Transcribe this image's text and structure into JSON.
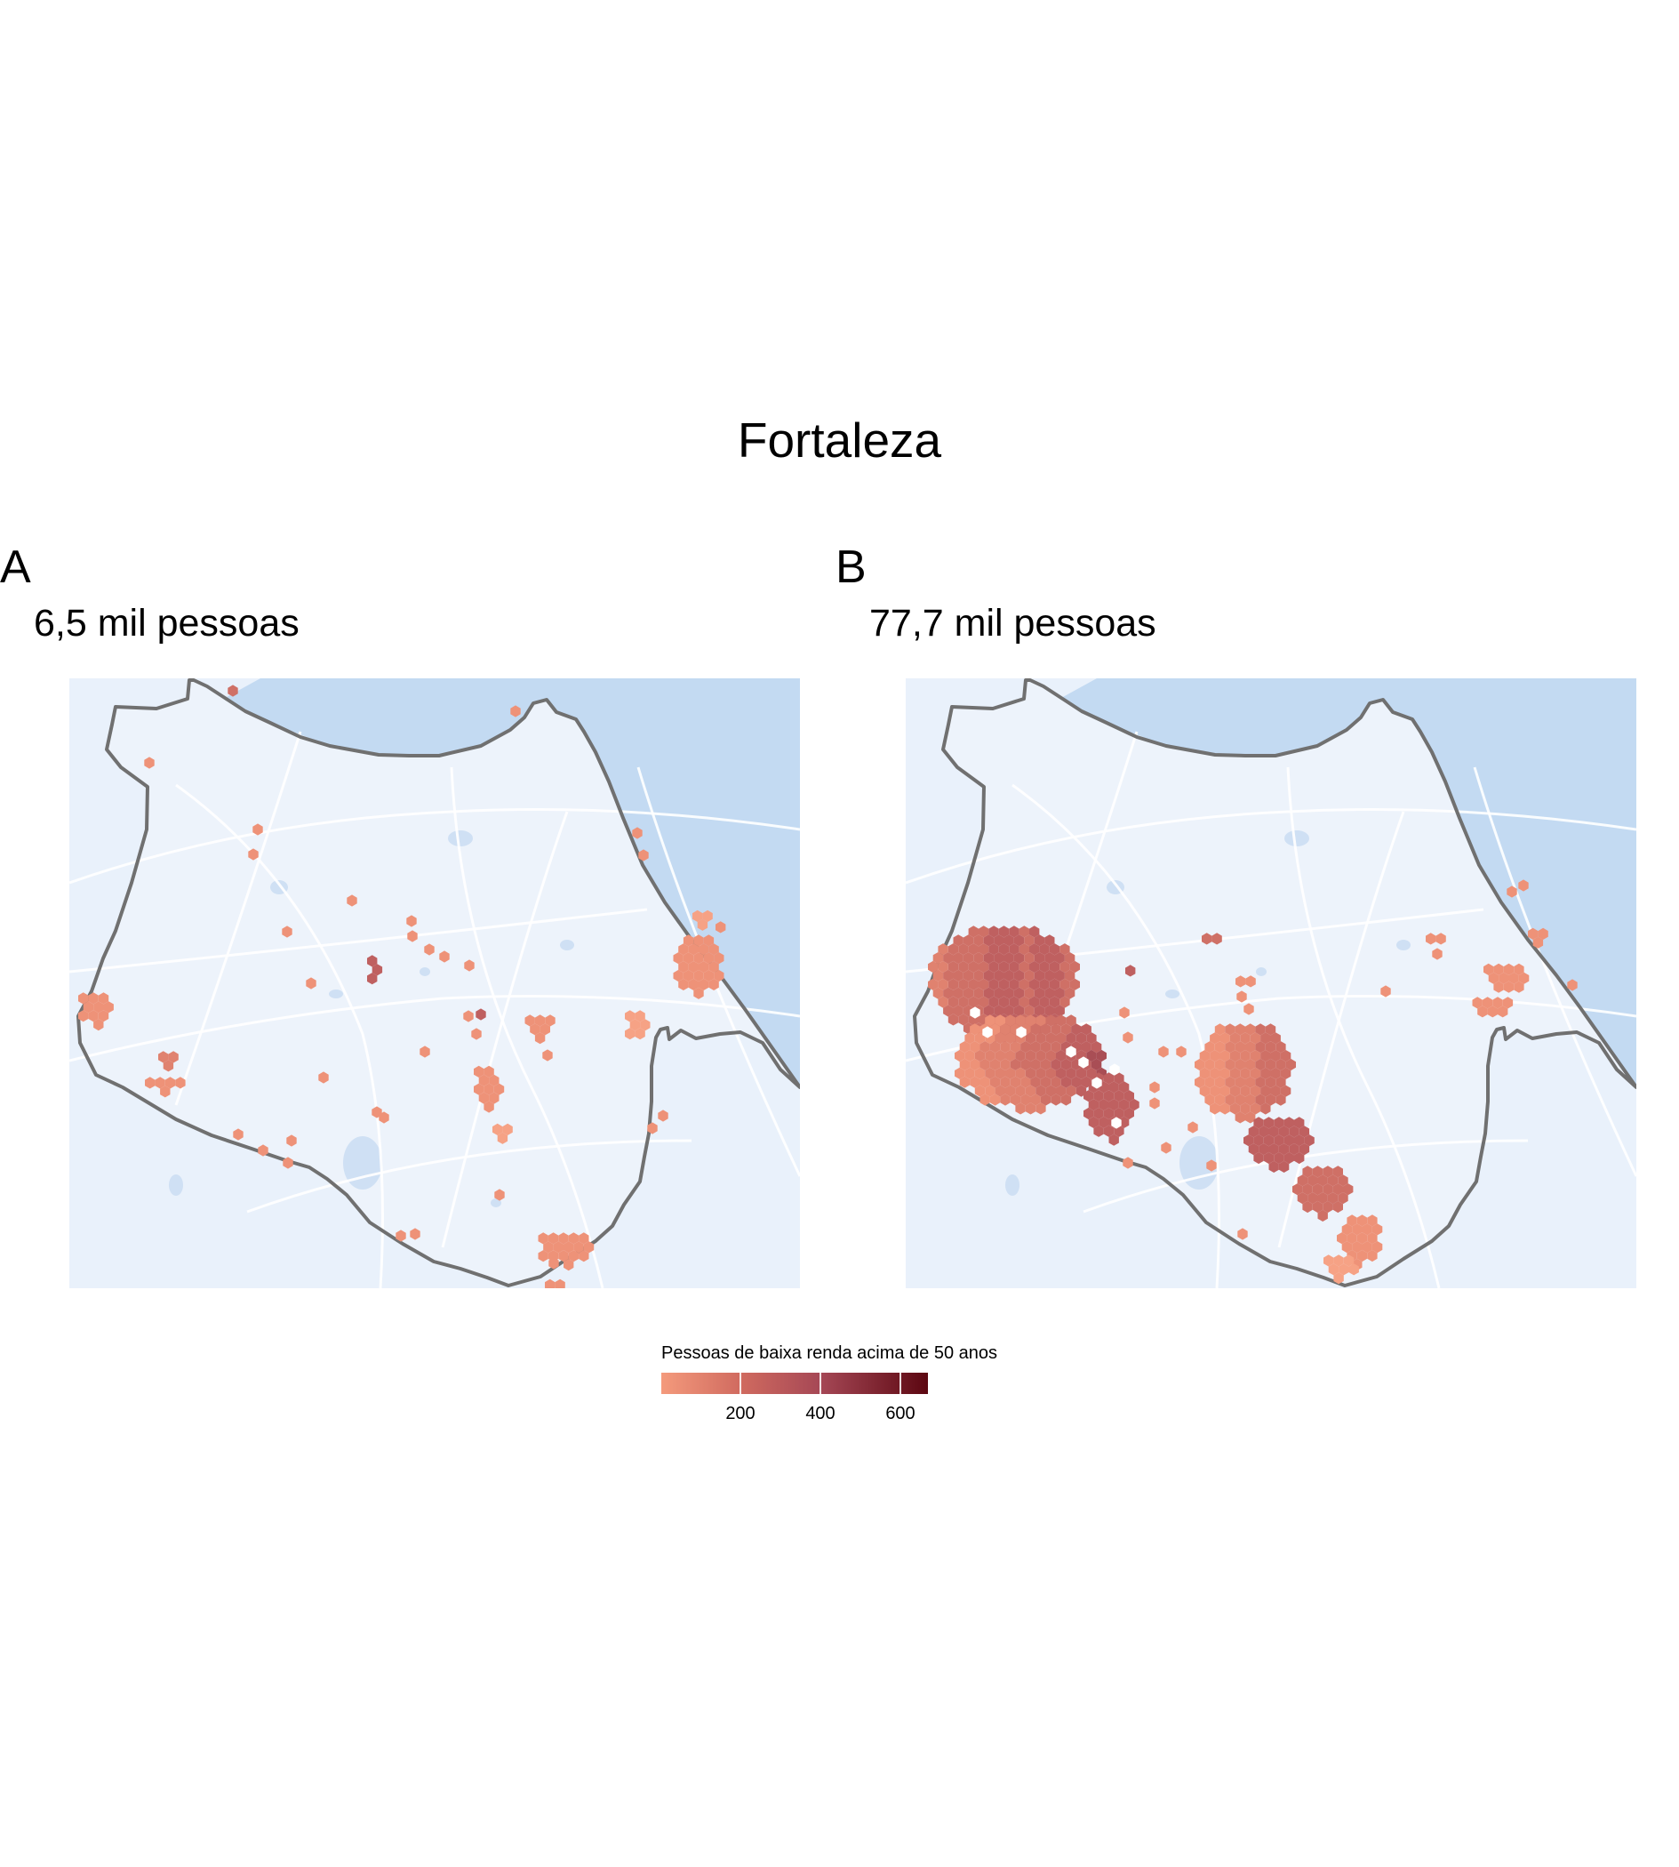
{
  "title": "Fortaleza",
  "panels": [
    {
      "letter": "A",
      "subtitle": "6,5 mil pessoas"
    },
    {
      "letter": "B",
      "subtitle": "77,7 mil pessoas"
    }
  ],
  "legend": {
    "title": "Pessoas de baixa renda acima de 50 anos",
    "ticks": [
      "200",
      "400",
      "600"
    ],
    "tick_values": [
      200,
      400,
      600
    ],
    "range": [
      0,
      660
    ],
    "colors": [
      "#f49a7c",
      "#d06a5f",
      "#a54755",
      "#5c0711"
    ]
  },
  "colors": {
    "water": "#c3daf2",
    "land": "#e9f1fb",
    "roads": "#ffffff",
    "boundary": "#707070"
  }
}
